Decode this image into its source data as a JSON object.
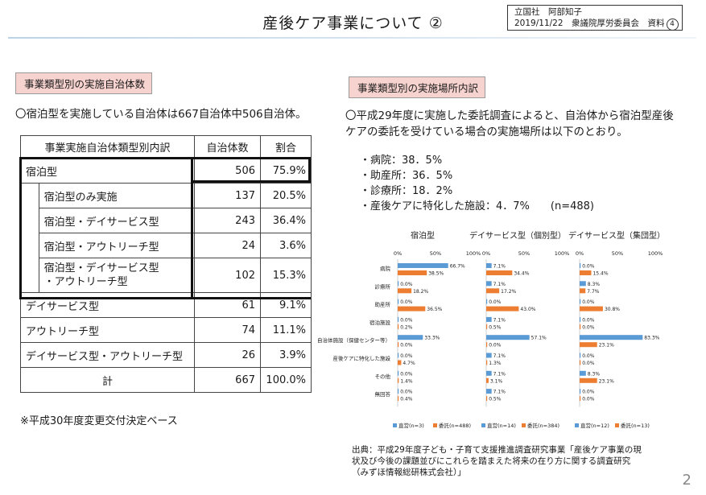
{
  "header": {
    "title": "産後ケア事業について ②",
    "info_line1": "立国社　阿部知子",
    "info_line2": "2019/11/22　衆議院厚労委員会　資料",
    "badge": "4"
  },
  "left": {
    "tag": "事業類型別の実施自治体数",
    "lead": "〇宿泊型を実施している自治体は667自治体中506自治体。",
    "table": {
      "headers": [
        "事業実施自治体類型別内訳",
        "自治体数",
        "割合"
      ],
      "rows": [
        {
          "name": "宿泊型",
          "count": "506",
          "pct": "75.9%"
        },
        {
          "name": "宿泊型のみ実施",
          "count": "137",
          "pct": "20.5%"
        },
        {
          "name": "宿泊型・デイサービス型",
          "count": "243",
          "pct": "36.4%"
        },
        {
          "name": "宿泊型・アウトリーチ型",
          "count": "24",
          "pct": "3.6%"
        },
        {
          "name1": "宿泊型・デイサービス型",
          "name2": "・アウトリーチ型",
          "count": "102",
          "pct": "15.3%"
        },
        {
          "name": "デイサービス型",
          "count": "61",
          "pct": "9.1%"
        },
        {
          "name": "アウトリーチ型",
          "count": "74",
          "pct": "11.1%"
        },
        {
          "name": "デイサービス型・アウトリーチ型",
          "count": "26",
          "pct": "3.9%"
        },
        {
          "name": "計",
          "count": "667",
          "pct": "100.0%"
        }
      ]
    },
    "note": "※平成30年度変更交付決定ベース"
  },
  "right": {
    "tag": "事業類型別の実施場所内訳",
    "lead": "〇平成29年度に実施した委託調査によると、自治体から宿泊型産後ケアの委託を受けている場合の実施場所は以下のとおり。",
    "bullets": [
      "・病院：38．5%",
      "・助産所：36．5%",
      "・診療所：18．2%",
      "・産後ケアに特化した施設：4．7%　　(n=488)"
    ]
  },
  "chart_data": {
    "type": "bar",
    "orientation": "horizontal",
    "categories": [
      "病院",
      "診療所",
      "助産所",
      "宿泊施設",
      "自治体施設（保健センター等）",
      "産後ケアに特化した施設",
      "その他",
      "無回答"
    ],
    "axis_ticks": [
      "0%",
      "50%",
      "100%"
    ],
    "colors": {
      "直営": "#5b9bd5",
      "委託": "#ed7d31"
    },
    "panels": [
      {
        "title": "宿泊型",
        "series": [
          {
            "name": "直営",
            "legend": "直営(n=3)",
            "values": [
              66.7,
              0.0,
              0.0,
              0.0,
              33.3,
              0.0,
              0.0,
              0.0
            ]
          },
          {
            "name": "委託",
            "legend": "委託(n=488)",
            "values": [
              38.5,
              18.2,
              36.5,
              0.2,
              0.0,
              4.7,
              1.4,
              0.4
            ]
          }
        ]
      },
      {
        "title": "デイサービス型（個別型）",
        "series": [
          {
            "name": "直営",
            "legend": "直営(n=14)",
            "values": [
              7.1,
              7.1,
              0.0,
              7.1,
              57.1,
              7.1,
              7.1,
              7.1
            ]
          },
          {
            "name": "委託",
            "legend": "委託(n=384)",
            "values": [
              34.4,
              17.2,
              43.0,
              0.5,
              0.0,
              1.3,
              3.1,
              0.5
            ]
          }
        ]
      },
      {
        "title": "デイサービス型（集団型）",
        "series": [
          {
            "name": "直営",
            "legend": "直営(n=12)",
            "values": [
              0.0,
              8.3,
              0.0,
              0.0,
              83.3,
              0.0,
              8.3,
              0.0
            ]
          },
          {
            "name": "委託",
            "legend": "委託(n=13)",
            "values": [
              15.4,
              7.7,
              30.8,
              0.0,
              23.1,
              0.0,
              23.1,
              0.0
            ]
          }
        ]
      }
    ]
  },
  "source": {
    "line1": "出典：平成29年度子ども・子育て支援推進調査研究事業「産後ケア事業の現",
    "line2": "状及び今後の課題並びにこれらを踏まえた将来の在り方に関する調査研究",
    "line3": "（みずほ情報総研株式会社）」"
  },
  "page_number": "2"
}
